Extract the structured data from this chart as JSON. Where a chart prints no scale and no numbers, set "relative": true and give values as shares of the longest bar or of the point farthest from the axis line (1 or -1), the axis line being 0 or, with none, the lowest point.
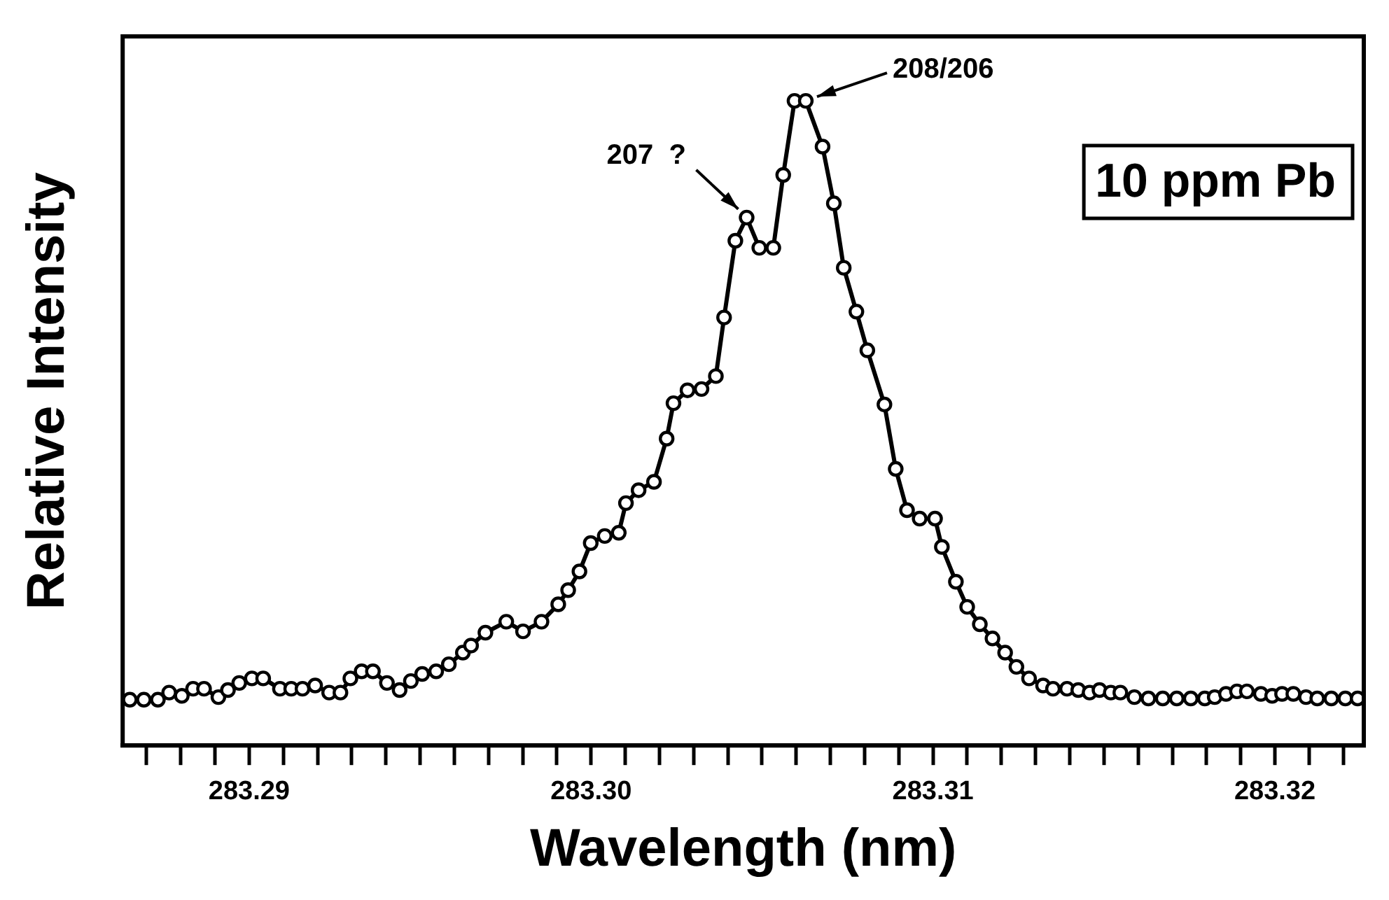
{
  "chart_data": {
    "type": "line",
    "xlabel": "Wavelength (nm)",
    "ylabel": "Relative Intensity",
    "relative": true,
    "marker": "circle",
    "line_style": "solid",
    "grid": false,
    "legend": false,
    "xlim": [
      283.2863,
      283.3226
    ],
    "xticks": [
      {
        "value": 283.287,
        "label": null
      },
      {
        "value": 283.288,
        "label": null
      },
      {
        "value": 283.289,
        "label": null
      },
      283.29,
      {
        "value": 283.291,
        "label": null
      },
      {
        "value": 283.292,
        "label": null
      },
      {
        "value": 283.293,
        "label": null
      },
      {
        "value": 283.294,
        "label": null
      },
      {
        "value": 283.295,
        "label": null
      },
      {
        "value": 283.296,
        "label": null
      },
      {
        "value": 283.297,
        "label": null
      },
      {
        "value": 283.298,
        "label": null
      },
      {
        "value": 283.299,
        "label": null
      },
      {
        "value": 283.3,
        "label": "283.30"
      },
      {
        "value": 283.301,
        "label": null
      },
      {
        "value": 283.302,
        "label": null
      },
      {
        "value": 283.303,
        "label": null
      },
      {
        "value": 283.304,
        "label": null
      },
      {
        "value": 283.305,
        "label": null
      },
      {
        "value": 283.306,
        "label": null
      },
      {
        "value": 283.307,
        "label": null
      },
      {
        "value": 283.308,
        "label": null
      },
      {
        "value": 283.309,
        "label": null
      },
      283.31,
      {
        "value": 283.311,
        "label": null
      },
      {
        "value": 283.312,
        "label": null
      },
      {
        "value": 283.313,
        "label": null
      },
      {
        "value": 283.314,
        "label": null
      },
      {
        "value": 283.315,
        "label": null
      },
      {
        "value": 283.316,
        "label": null
      },
      {
        "value": 283.317,
        "label": null
      },
      {
        "value": 283.318,
        "label": null
      },
      {
        "value": 283.319,
        "label": null
      },
      283.32,
      {
        "value": 283.321,
        "label": null
      },
      {
        "value": 283.322,
        "label": null
      }
    ],
    "series": [
      {
        "color": "#000000",
        "x": [
          283.28651,
          283.28692,
          283.28733,
          283.28766,
          283.28803,
          283.28836,
          283.28868,
          283.2891,
          283.28938,
          283.28971,
          283.29008,
          283.29041,
          283.2909,
          283.29123,
          283.29156,
          283.29193,
          283.29234,
          283.29267,
          283.29296,
          283.29329,
          283.29362,
          283.29403,
          283.2944,
          283.29473,
          283.29506,
          283.29547,
          283.29584,
          283.29625,
          283.29649,
          283.29691,
          283.29752,
          283.29801,
          283.29855,
          283.29904,
          283.29933,
          283.29966,
          283.29999,
          283.3004,
          283.30081,
          283.30102,
          283.30139,
          283.30184,
          283.30221,
          283.30241,
          283.30282,
          283.30323,
          283.30365,
          283.30389,
          283.30422,
          283.30455,
          283.30492,
          283.30533,
          283.30562,
          283.30595,
          283.30628,
          283.30677,
          283.3071,
          283.30739,
          283.30776,
          283.30808,
          283.30858,
          283.30891,
          283.30924,
          283.30961,
          283.31006,
          283.31026,
          283.31067,
          283.311,
          283.31137,
          283.31174,
          283.31211,
          283.31244,
          283.31281,
          283.31322,
          283.31351,
          283.31392,
          283.31425,
          283.31458,
          283.31487,
          283.3152,
          283.31548,
          283.31589,
          283.3163,
          283.31672,
          283.31713,
          283.31754,
          283.31795,
          283.31824,
          283.31857,
          283.31889,
          283.31918,
          283.31959,
          283.31992,
          283.32021,
          283.32054,
          283.32091,
          283.32124,
          283.32165,
          283.32206,
          283.32242
        ],
        "values": [
          0.071,
          0.071,
          0.071,
          0.082,
          0.077,
          0.088,
          0.088,
          0.075,
          0.086,
          0.097,
          0.104,
          0.104,
          0.088,
          0.088,
          0.088,
          0.093,
          0.082,
          0.082,
          0.104,
          0.115,
          0.115,
          0.097,
          0.086,
          0.1,
          0.111,
          0.115,
          0.126,
          0.144,
          0.155,
          0.175,
          0.192,
          0.177,
          0.192,
          0.219,
          0.241,
          0.27,
          0.314,
          0.325,
          0.33,
          0.376,
          0.396,
          0.409,
          0.476,
          0.531,
          0.551,
          0.553,
          0.573,
          0.664,
          0.783,
          0.819,
          0.772,
          0.772,
          0.885,
          1,
          1,
          0.929,
          0.841,
          0.741,
          0.673,
          0.613,
          0.529,
          0.429,
          0.365,
          0.352,
          0.352,
          0.308,
          0.254,
          0.215,
          0.188,
          0.166,
          0.144,
          0.122,
          0.104,
          0.093,
          0.088,
          0.088,
          0.086,
          0.082,
          0.086,
          0.082,
          0.082,
          0.075,
          0.073,
          0.073,
          0.073,
          0.073,
          0.073,
          0.075,
          0.08,
          0.084,
          0.084,
          0.08,
          0.077,
          0.08,
          0.08,
          0.075,
          0.073,
          0.073,
          0.073,
          0.073
        ]
      }
    ],
    "annotations": [
      {
        "text": "207  ?",
        "x": 283.30455,
        "y": 0.819
      },
      {
        "text": "208/206",
        "x": 283.30628,
        "y": 1
      },
      "10 ppm Pb"
    ]
  }
}
